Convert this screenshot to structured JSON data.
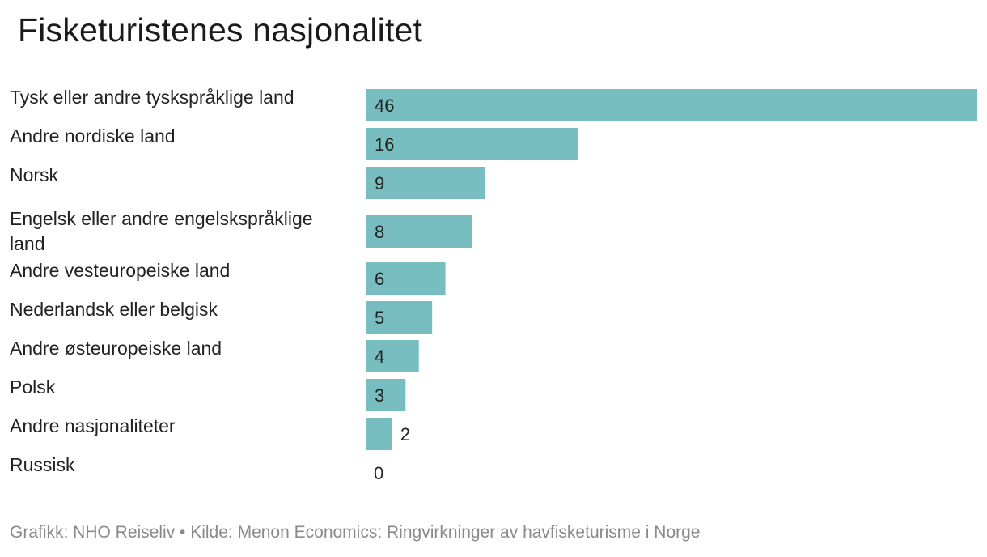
{
  "chart_data": {
    "type": "bar",
    "orientation": "horizontal",
    "title": "Fisketuristenes nasjonalitet",
    "categories": [
      "Tysk eller andre tyskspråklige land",
      "Andre nordiske land",
      "Norsk",
      "Engelsk eller andre engelskspråklige land",
      "Andre vesteuropeiske land",
      "Nederlandsk eller belgisk",
      "Andre østeuropeiske land",
      "Polsk",
      "Andre nasjonaliteter",
      "Russisk"
    ],
    "values": [
      46,
      16,
      9,
      8,
      6,
      5,
      4,
      3,
      2,
      0
    ],
    "xlim": [
      0,
      46
    ],
    "bar_color": "#78bec1",
    "grid": false,
    "legend": "none"
  },
  "source": "Grafikk: NHO Reiseliv • Kilde: Menon Economics: Ringvirkninger av havfisketurisme i Norge"
}
